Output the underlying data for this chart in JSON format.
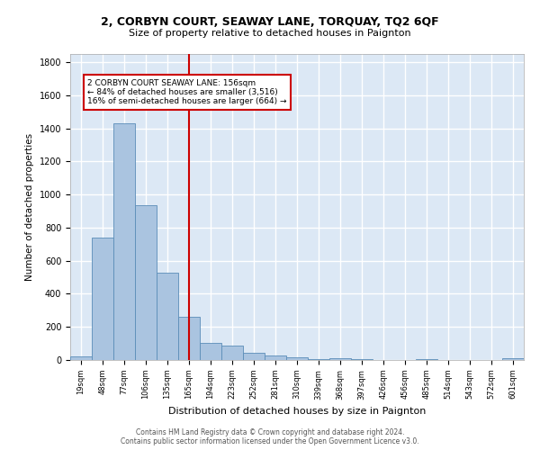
{
  "title1": "2, CORBYN COURT, SEAWAY LANE, TORQUAY, TQ2 6QF",
  "title2": "Size of property relative to detached houses in Paignton",
  "xlabel": "Distribution of detached houses by size in Paignton",
  "ylabel": "Number of detached properties",
  "categories": [
    "19sqm",
    "48sqm",
    "77sqm",
    "106sqm",
    "135sqm",
    "165sqm",
    "194sqm",
    "223sqm",
    "252sqm",
    "281sqm",
    "310sqm",
    "339sqm",
    "368sqm",
    "397sqm",
    "426sqm",
    "456sqm",
    "485sqm",
    "514sqm",
    "543sqm",
    "572sqm",
    "601sqm"
  ],
  "values": [
    20,
    740,
    1430,
    935,
    530,
    260,
    103,
    85,
    45,
    25,
    15,
    5,
    12,
    3,
    1,
    1,
    3,
    1,
    1,
    1,
    10
  ],
  "bar_color": "#aac4e0",
  "bar_edge_color": "#5b8db8",
  "vline_x": 5.0,
  "vline_color": "#cc0000",
  "annotation_title": "2 CORBYN COURT SEAWAY LANE: 156sqm",
  "annotation_line1": "← 84% of detached houses are smaller (3,516)",
  "annotation_line2": "16% of semi-detached houses are larger (664) →",
  "annotation_box_color": "#ffffff",
  "annotation_box_edge": "#cc0000",
  "footer1": "Contains HM Land Registry data © Crown copyright and database right 2024.",
  "footer2": "Contains public sector information licensed under the Open Government Licence v3.0.",
  "ylim": [
    0,
    1850
  ],
  "background_color": "#dce8f5",
  "grid_color": "#ffffff"
}
